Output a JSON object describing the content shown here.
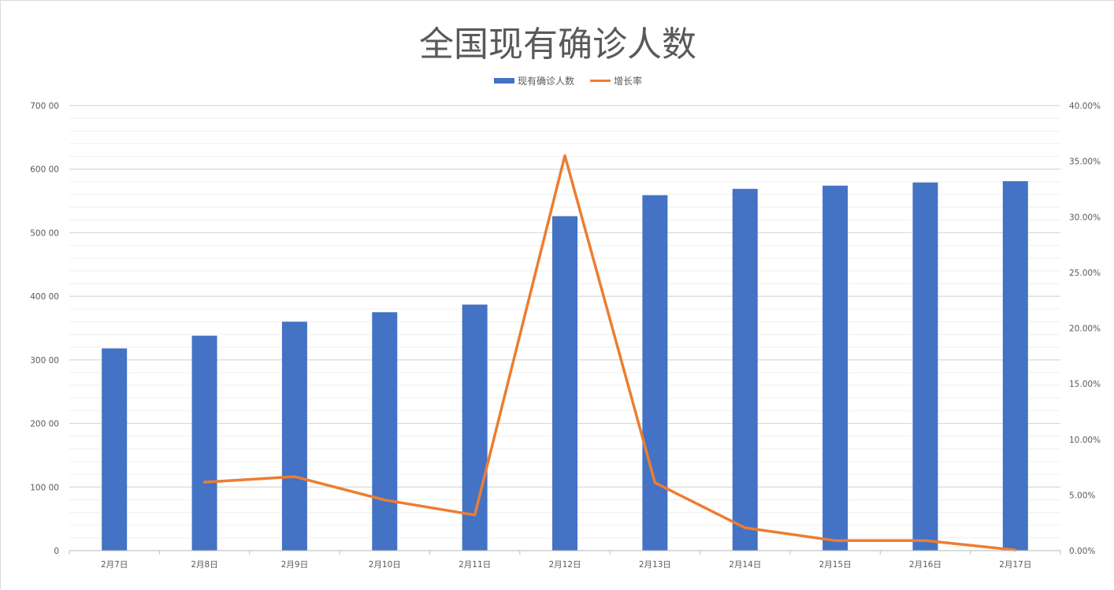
{
  "chart_data": {
    "type": "bar+line",
    "title": "全国现有确诊人数",
    "categories": [
      "2月7日",
      "2月8日",
      "2月9日",
      "2月10日",
      "2月11日",
      "2月12日",
      "2月13日",
      "2月14日",
      "2月15日",
      "2月16日",
      "2月17日"
    ],
    "series": [
      {
        "name": "现有确诊人数",
        "type": "bar",
        "axis": "left",
        "color": "#4472C4",
        "values": [
          31800,
          33800,
          36000,
          37500,
          38700,
          52600,
          55900,
          56900,
          57400,
          57900,
          58100
        ]
      },
      {
        "name": "增长率",
        "type": "line",
        "axis": "right",
        "color": "#ED7D31",
        "values": [
          null,
          0.0615,
          0.0665,
          0.0455,
          0.032,
          0.355,
          0.061,
          0.0205,
          0.009,
          0.009,
          0.0005
        ]
      }
    ],
    "left_axis": {
      "min": 0,
      "max": 70000,
      "step": 10000,
      "tick_labels": [
        "0",
        "100 00",
        "200 00",
        "300 00",
        "400 00",
        "500 00",
        "600 00",
        "700 00"
      ]
    },
    "right_axis": {
      "min": 0,
      "max": 0.4,
      "step": 0.05,
      "tick_labels": [
        "0.00%",
        "5.00%",
        "10.00%",
        "15.00%",
        "20.00%",
        "25.00%",
        "30.00%",
        "35.00%",
        "40.00%"
      ]
    },
    "legend_position": "top",
    "grid": true
  }
}
